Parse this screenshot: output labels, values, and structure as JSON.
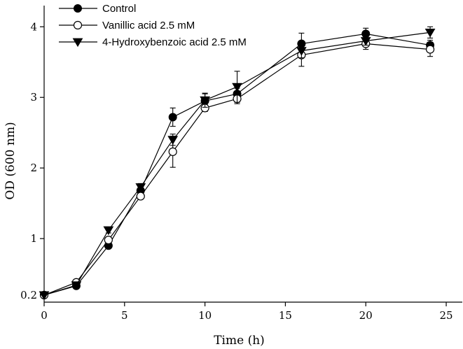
{
  "chart_data": {
    "type": "line",
    "title": "",
    "xlabel": "Time (h)",
    "ylabel": "OD (600 nm)",
    "xlim": [
      0,
      26
    ],
    "ylim": [
      0.1,
      4.3
    ],
    "x_ticks": [
      0,
      5,
      10,
      15,
      20,
      25
    ],
    "x_tick_labels": [
      "0",
      "5",
      "10",
      "15",
      "20",
      "25"
    ],
    "y_ticks": [
      0.2,
      1,
      2,
      3,
      4
    ],
    "y_tick_labels": [
      "0.2",
      "1",
      "2",
      "3",
      "4"
    ],
    "legend_position": "top-left",
    "grid": false,
    "x": [
      0,
      2,
      4,
      6,
      8,
      10,
      12,
      16,
      20,
      24
    ],
    "series": [
      {
        "name": "Control",
        "marker": "filled-circle",
        "values": [
          0.2,
          0.33,
          0.9,
          1.68,
          2.72,
          2.95,
          3.05,
          3.76,
          3.9,
          3.74
        ],
        "errors": [
          0,
          0.02,
          0.03,
          0.05,
          0.13,
          0.1,
          0.08,
          0.15,
          0.08,
          0.07
        ]
      },
      {
        "name": "Vanillic acid 2.5 mM",
        "marker": "open-circle",
        "values": [
          0.2,
          0.38,
          0.98,
          1.6,
          2.23,
          2.85,
          2.98,
          3.6,
          3.76,
          3.68
        ],
        "errors": [
          0,
          0.02,
          0.03,
          0.04,
          0.22,
          0.05,
          0.07,
          0.16,
          0.08,
          0.1
        ]
      },
      {
        "name": "4-Hydroxybenzoic acid 2.5 mM",
        "marker": "filled-triangle-down",
        "values": [
          0.2,
          0.34,
          1.12,
          1.73,
          2.4,
          2.96,
          3.15,
          3.66,
          3.8,
          3.92
        ],
        "errors": [
          0,
          0.02,
          0.04,
          0.05,
          0.08,
          0.1,
          0.22,
          0.1,
          0.06,
          0.08
        ]
      }
    ]
  }
}
